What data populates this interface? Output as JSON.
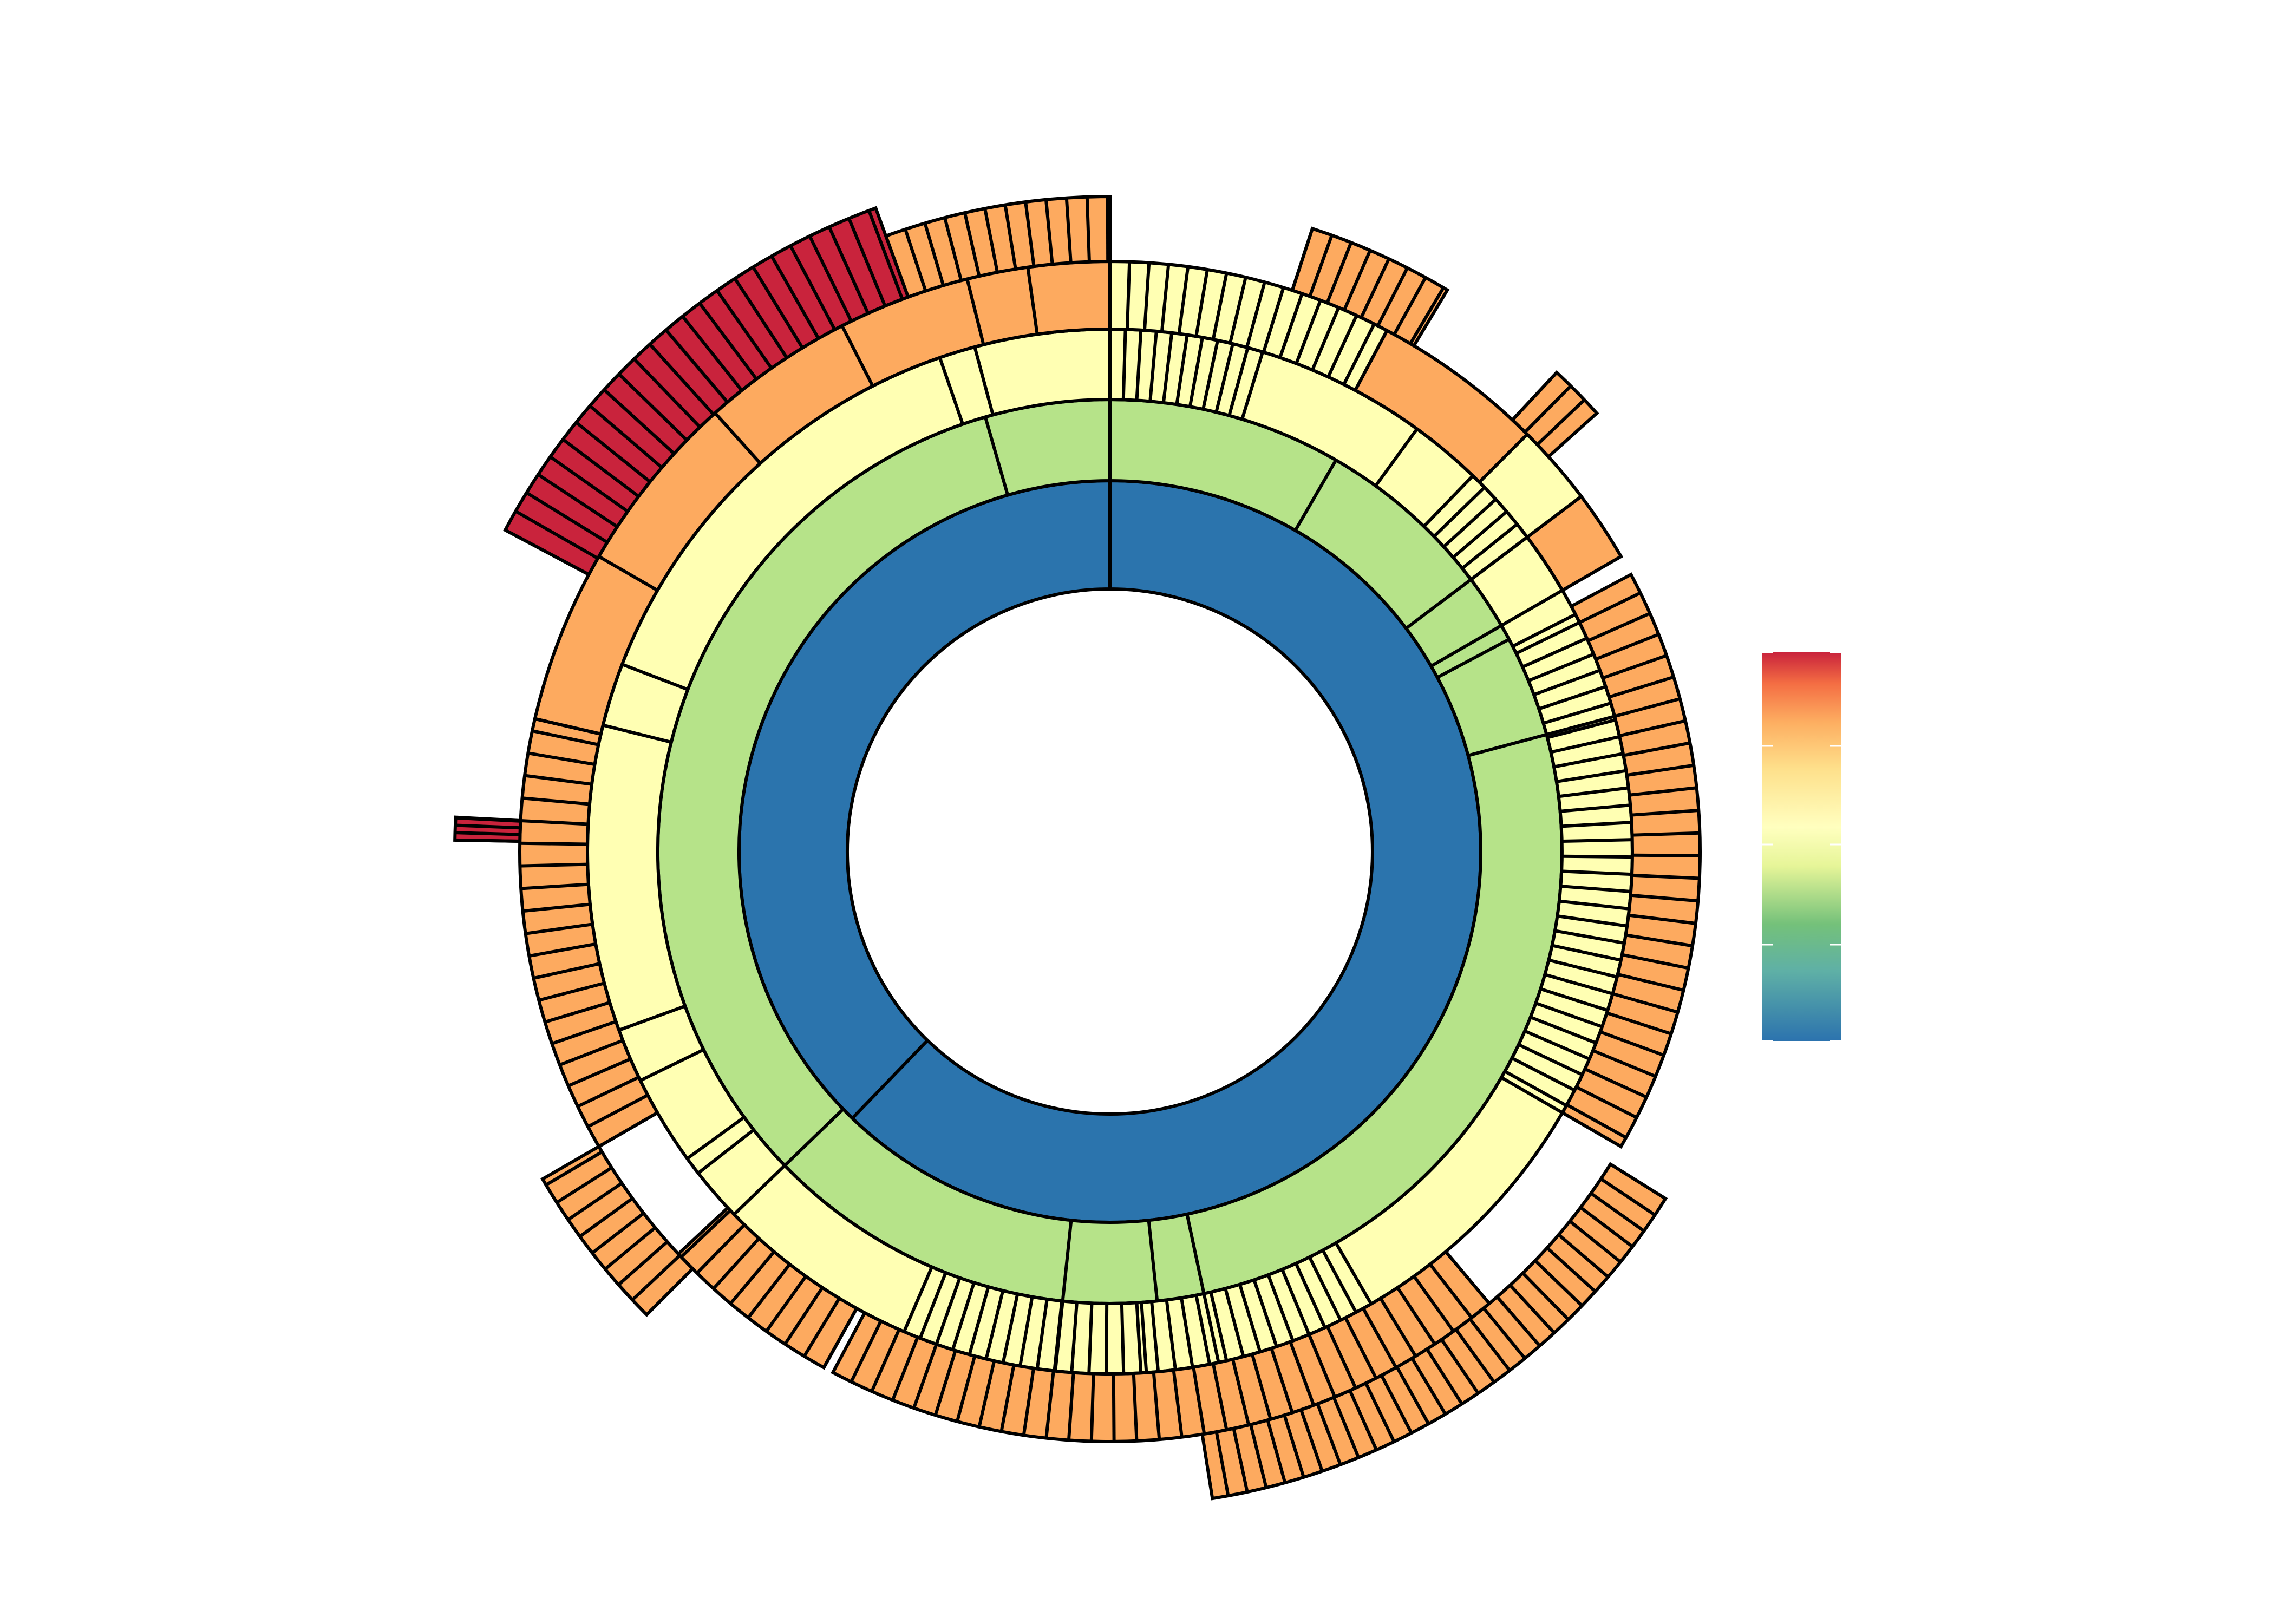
{
  "chart_data": {
    "type": "sunburst",
    "title": "",
    "colorbar": {
      "ticks": [],
      "colors": [
        "#2c73ae",
        "#74c17a",
        "#e6f598",
        "#fee08b",
        "#f46d43",
        "#c9233c"
      ]
    },
    "colors": {
      "level1": "#2b74ad",
      "level2": "#b6e389",
      "level3": "#ffffb3",
      "level4": "#ffffb3",
      "level4_orange": "#fdaa5f",
      "level5": "#fdaa5f",
      "level6": "#c9233c",
      "outline": "#000000"
    },
    "rings": [
      {
        "level": 1,
        "fill": "level1",
        "arcs": [
          [
            -45,
            360
          ]
        ],
        "splits": [
          0,
          -45
        ]
      },
      {
        "level": 2,
        "fill": "level2",
        "arcs": [
          [
            -45,
            360
          ]
        ],
        "splits": [
          -98,
          -44,
          0,
          38,
          53,
          60,
          63,
          78,
          172,
          186,
          226,
          282,
          287
        ]
      },
      {
        "level": 3,
        "fill": "level3",
        "arcs": [
          [
            -110,
            360
          ]
        ],
        "splits": [
          -110,
          -104,
          -44,
          0,
          36,
          40,
          58,
          115,
          130,
          218,
          237,
          250,
          251,
          284,
          291,
          298
        ],
        "divs": [
          [
            -18,
            0,
            1.5
          ],
          [
            44,
            58,
            2
          ],
          [
            64,
            118,
            2
          ],
          [
            143,
            218,
            2
          ],
          [
            219,
            223,
            2
          ]
        ]
      },
      {
        "level": 4,
        "fill": "level4_orange",
        "arcs": [
          [
            -105,
            52
          ],
          [
            62,
            120
          ],
          [
            140,
            203
          ],
          [
            207,
            227
          ],
          [
            240,
            270
          ],
          [
            270,
            290
          ],
          [
            293,
            303
          ]
        ],
        "divs": [
          [
            -105,
            -80,
            1.7
          ],
          [
            -80,
            -64,
            1.3
          ],
          [
            10,
            40,
            2.5
          ],
          [
            43,
            52,
            2.5
          ],
          [
            140,
            158,
            2
          ],
          [
            164,
            172,
            2
          ],
          [
            174,
            193,
            2
          ],
          [
            253,
            269,
            2.5
          ],
          [
            294,
            298,
            2
          ],
          [
            322,
            336,
            2
          ]
        ]
      },
      {
        "level": 5,
        "fill": "level6",
        "arcs": [
          [
            240,
            270
          ],
          [
            293,
            342
          ]
        ],
        "divs": [
          [
            293,
            342,
            1.8
          ],
          [
            242,
            250,
            2
          ]
        ]
      }
    ]
  }
}
